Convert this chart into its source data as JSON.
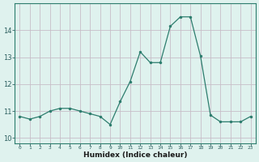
{
  "x": [
    0,
    1,
    2,
    3,
    4,
    5,
    6,
    7,
    8,
    9,
    10,
    11,
    12,
    13,
    14,
    15,
    16,
    17,
    18,
    19,
    20,
    21,
    22,
    23
  ],
  "y": [
    10.8,
    10.7,
    10.8,
    11.0,
    11.1,
    11.1,
    11.0,
    10.9,
    10.8,
    10.5,
    11.35,
    12.1,
    13.2,
    12.8,
    12.8,
    14.15,
    14.5,
    14.5,
    13.05,
    10.85,
    10.6,
    10.6,
    10.6,
    10.8
  ],
  "xlabel": "Humidex (Indice chaleur)",
  "line_color": "#2d7d6e",
  "bg_color": "#dff2ee",
  "grid_color": "#c8bec8",
  "ylim": [
    9.8,
    15.0
  ],
  "xlim": [
    -0.5,
    23.5
  ],
  "yticks": [
    10,
    11,
    12,
    13,
    14
  ],
  "xticks": [
    0,
    1,
    2,
    3,
    4,
    5,
    6,
    7,
    8,
    9,
    10,
    11,
    12,
    13,
    14,
    15,
    16,
    17,
    18,
    19,
    20,
    21,
    22,
    23
  ]
}
